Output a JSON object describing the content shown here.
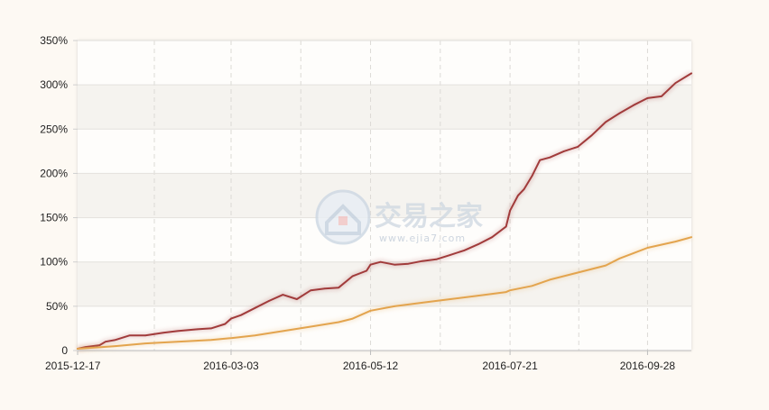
{
  "watermark": {
    "brand": "交易之家",
    "url": "www.ejia7.com",
    "logo_icon": "house-shield-icon"
  },
  "colors": {
    "background": "#fdf9f3",
    "plot_background": "#fefdfb",
    "band": "#f5f3ef",
    "series_fund": "#a13b3b",
    "series_benchmark": "#e3a44e",
    "grid": "#e3e1dd"
  },
  "chart_data": {
    "type": "line",
    "title": "",
    "xlabel": "",
    "ylabel": "",
    "ylim": [
      0,
      350
    ],
    "y_ticks": [
      0,
      50,
      100,
      150,
      200,
      250,
      300,
      350
    ],
    "y_tick_labels": [
      "0",
      "50%",
      "100%",
      "150%",
      "200%",
      "250%",
      "300%",
      "350%"
    ],
    "x_range": [
      "2015-12-17",
      "2016-10-20"
    ],
    "x_ticks": [
      "2015-12-17",
      "2016-03-03",
      "2016-05-12",
      "2016-07-21",
      "2016-09-28"
    ],
    "x_tick_labels": [
      "2015-12-17",
      "2016-03-03",
      "2016-05-12",
      "2016-07-21",
      "2016-09-28"
    ],
    "grid": true,
    "legend": "none",
    "series": [
      {
        "key": "fund",
        "x": [
          "2015-12-17",
          "2015-12-21",
          "2015-12-28",
          "2015-12-31",
          "2016-01-05",
          "2016-01-12",
          "2016-01-20",
          "2016-01-29",
          "2016-02-05",
          "2016-02-15",
          "2016-02-22",
          "2016-02-29",
          "2016-03-03",
          "2016-03-08",
          "2016-03-15",
          "2016-03-22",
          "2016-03-29",
          "2016-04-05",
          "2016-04-12",
          "2016-04-19",
          "2016-04-26",
          "2016-05-03",
          "2016-05-10",
          "2016-05-12",
          "2016-05-17",
          "2016-05-24",
          "2016-05-31",
          "2016-06-07",
          "2016-06-14",
          "2016-06-21",
          "2016-06-28",
          "2016-07-05",
          "2016-07-12",
          "2016-07-19",
          "2016-07-21",
          "2016-07-25",
          "2016-07-28",
          "2016-08-01",
          "2016-08-05",
          "2016-08-10",
          "2016-08-17",
          "2016-08-24",
          "2016-08-31",
          "2016-09-07",
          "2016-09-14",
          "2016-09-21",
          "2016-09-28",
          "2016-10-05",
          "2016-10-12",
          "2016-10-20"
        ],
        "values": [
          2,
          4,
          6,
          10,
          12,
          17,
          17,
          20,
          22,
          24,
          25,
          30,
          36,
          40,
          48,
          56,
          63,
          58,
          68,
          70,
          71,
          84,
          90,
          97,
          100,
          97,
          98,
          101,
          103,
          108,
          113,
          120,
          128,
          140,
          158,
          175,
          182,
          197,
          215,
          218,
          225,
          230,
          243,
          258,
          268,
          277,
          285,
          287,
          302,
          313
        ]
      },
      {
        "key": "benchmark",
        "x": [
          "2015-12-17",
          "2016-01-05",
          "2016-01-20",
          "2016-02-05",
          "2016-02-22",
          "2016-03-03",
          "2016-03-15",
          "2016-03-29",
          "2016-04-12",
          "2016-04-26",
          "2016-05-03",
          "2016-05-12",
          "2016-05-24",
          "2016-06-07",
          "2016-06-21",
          "2016-07-05",
          "2016-07-19",
          "2016-07-21",
          "2016-08-01",
          "2016-08-10",
          "2016-08-24",
          "2016-09-07",
          "2016-09-14",
          "2016-09-21",
          "2016-09-28",
          "2016-10-12",
          "2016-10-20"
        ],
        "values": [
          2,
          5,
          8,
          10,
          12,
          14,
          17,
          22,
          27,
          32,
          36,
          45,
          50,
          54,
          58,
          62,
          66,
          68,
          73,
          80,
          88,
          96,
          104,
          110,
          116,
          123,
          128
        ]
      }
    ]
  }
}
